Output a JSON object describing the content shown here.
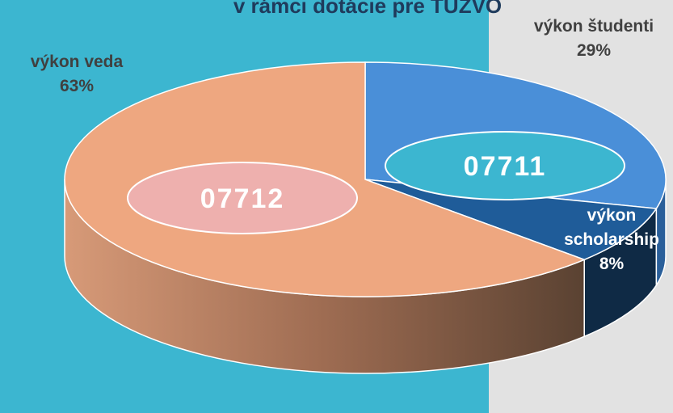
{
  "chart_data": {
    "type": "pie3d",
    "title": "v rámci dotácie pre TUZVO",
    "categories": [
      "výkon študenti",
      "výkon scholarship",
      "výkon veda"
    ],
    "values": [
      29,
      8,
      63
    ],
    "value_labels": [
      "29%",
      "8%",
      "63%"
    ],
    "colors": [
      "#4a8fd8",
      "#1f5c99",
      "#eea780"
    ],
    "annotations": [
      {
        "text": "07711",
        "color": "#3cb6d0"
      },
      {
        "text": "07712",
        "color": "#eeb0ae"
      }
    ]
  }
}
